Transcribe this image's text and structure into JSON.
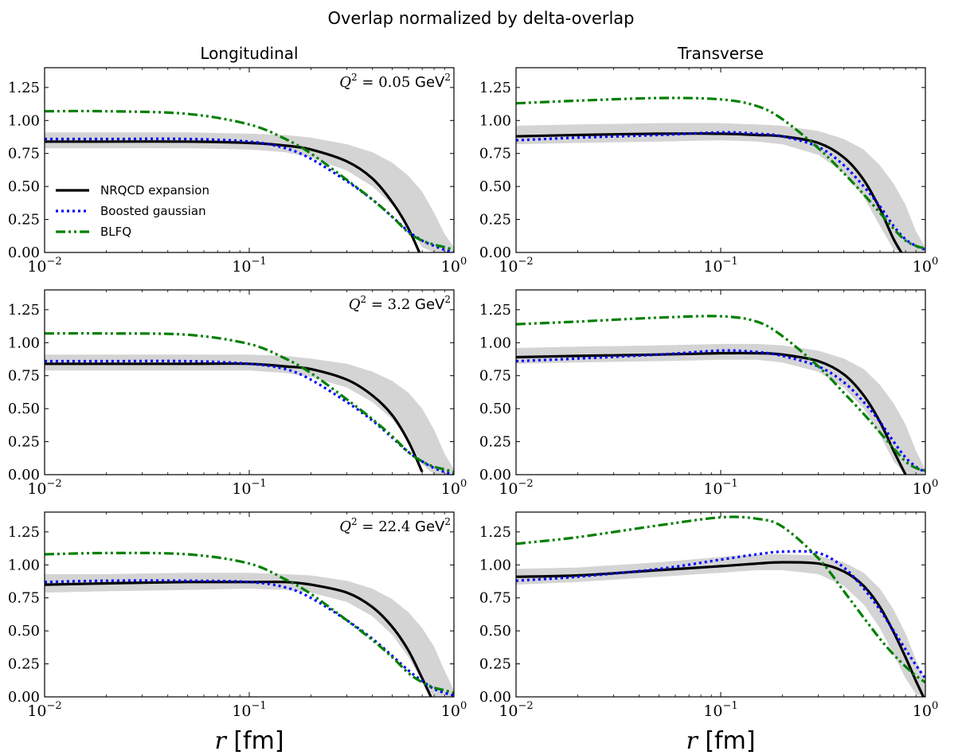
{
  "figure": {
    "suptitle": "Overlap normalized by delta-overlap",
    "column_titles": [
      "Longitudinal",
      "Transverse"
    ],
    "xlabel_symbol": "r",
    "xlabel_unit": "[fm]"
  },
  "chart_data": [
    {
      "type": "line",
      "title": "Longitudinal",
      "annotation": {
        "symbol": "Q",
        "exp": "2",
        "value": "= 0.05",
        "unit": "GeV",
        "unit_exp": "2"
      },
      "xlabel": "",
      "ylabel": "",
      "x_scale": "log",
      "xlim": [
        0.01,
        1
      ],
      "ylim": [
        0,
        1.4
      ],
      "x_ticks": [
        {
          "base": "10",
          "exp": "−2"
        },
        {
          "base": "10",
          "exp": "−1"
        },
        {
          "base": "10",
          "exp": "0"
        }
      ],
      "y_ticks": [
        "0.00",
        "0.25",
        "0.50",
        "0.75",
        "1.00",
        "1.25"
      ],
      "legend": {
        "placement": "center-left",
        "entries": [
          "NRQCD expansion",
          "Boosted gaussian",
          "BLFQ"
        ]
      },
      "x": [
        0.01,
        0.02,
        0.05,
        0.1,
        0.15,
        0.2,
        0.3,
        0.4,
        0.5,
        0.6,
        0.7,
        0.8,
        0.9,
        1.0
      ],
      "band": {
        "lower": [
          0.79,
          0.79,
          0.79,
          0.78,
          0.76,
          0.72,
          0.62,
          0.5,
          0.36,
          0.2,
          0.04,
          0.0,
          0.0,
          0.0
        ],
        "upper": [
          0.91,
          0.91,
          0.91,
          0.9,
          0.89,
          0.87,
          0.82,
          0.76,
          0.68,
          0.58,
          0.46,
          0.3,
          0.14,
          0.04
        ]
      },
      "series": [
        {
          "name": "NRQCD expansion",
          "values": [
            0.84,
            0.84,
            0.84,
            0.83,
            0.81,
            0.78,
            0.69,
            0.56,
            0.38,
            0.18,
            -0.05,
            null,
            null,
            null
          ]
        },
        {
          "name": "Boosted gaussian",
          "values": [
            0.86,
            0.86,
            0.86,
            0.84,
            0.79,
            0.71,
            0.54,
            0.4,
            0.27,
            0.16,
            0.09,
            0.05,
            0.02,
            0.0
          ]
        },
        {
          "name": "BLFQ",
          "values": [
            1.07,
            1.07,
            1.05,
            0.97,
            0.86,
            0.75,
            0.55,
            0.4,
            0.27,
            0.15,
            0.09,
            0.06,
            0.04,
            0.02
          ]
        }
      ]
    },
    {
      "type": "line",
      "title": "Transverse",
      "annotation": null,
      "xlabel": "",
      "ylabel": "",
      "x_scale": "log",
      "xlim": [
        0.01,
        1
      ],
      "ylim": [
        0,
        1.4
      ],
      "x_ticks": [
        {
          "base": "10",
          "exp": "−2"
        },
        {
          "base": "10",
          "exp": "−1"
        },
        {
          "base": "10",
          "exp": "0"
        }
      ],
      "y_ticks": [
        "0.00",
        "0.25",
        "0.50",
        "0.75",
        "1.00",
        "1.25"
      ],
      "x": [
        0.01,
        0.02,
        0.05,
        0.1,
        0.15,
        0.2,
        0.3,
        0.4,
        0.5,
        0.6,
        0.7,
        0.8,
        0.9,
        1.0
      ],
      "band": {
        "lower": [
          0.82,
          0.83,
          0.84,
          0.85,
          0.84,
          0.82,
          0.74,
          0.6,
          0.42,
          0.2,
          0.02,
          0.0,
          0.0,
          0.0
        ],
        "upper": [
          0.96,
          0.97,
          0.98,
          0.98,
          0.97,
          0.96,
          0.92,
          0.86,
          0.78,
          0.66,
          0.52,
          0.36,
          0.16,
          0.04
        ]
      },
      "series": [
        {
          "name": "NRQCD expansion",
          "values": [
            0.88,
            0.89,
            0.9,
            0.9,
            0.89,
            0.88,
            0.83,
            0.72,
            0.55,
            0.33,
            0.1,
            -0.05,
            null,
            null
          ]
        },
        {
          "name": "Boosted gaussian",
          "values": [
            0.85,
            0.87,
            0.89,
            0.91,
            0.9,
            0.88,
            0.8,
            0.66,
            0.5,
            0.35,
            0.2,
            0.1,
            0.05,
            0.02
          ]
        },
        {
          "name": "BLFQ",
          "values": [
            1.13,
            1.15,
            1.17,
            1.16,
            1.11,
            1.01,
            0.79,
            0.6,
            0.44,
            0.3,
            0.18,
            0.09,
            0.05,
            0.03
          ]
        }
      ]
    },
    {
      "type": "line",
      "title": "",
      "annotation": {
        "symbol": "Q",
        "exp": "2",
        "value": "= 3.2",
        "unit": "GeV",
        "unit_exp": "2"
      },
      "xlabel": "",
      "ylabel": "",
      "x_scale": "log",
      "xlim": [
        0.01,
        1
      ],
      "ylim": [
        0,
        1.4
      ],
      "x_ticks": [
        {
          "base": "10",
          "exp": "−2"
        },
        {
          "base": "10",
          "exp": "−1"
        },
        {
          "base": "10",
          "exp": "0"
        }
      ],
      "y_ticks": [
        "0.00",
        "0.25",
        "0.50",
        "0.75",
        "1.00",
        "1.25"
      ],
      "x": [
        0.01,
        0.02,
        0.05,
        0.1,
        0.15,
        0.2,
        0.3,
        0.4,
        0.5,
        0.6,
        0.7,
        0.8,
        0.9,
        1.0
      ],
      "band": {
        "lower": [
          0.79,
          0.79,
          0.79,
          0.79,
          0.77,
          0.74,
          0.66,
          0.55,
          0.42,
          0.26,
          0.08,
          0.0,
          0.0,
          0.0
        ],
        "upper": [
          0.91,
          0.91,
          0.91,
          0.91,
          0.9,
          0.88,
          0.84,
          0.78,
          0.71,
          0.62,
          0.5,
          0.34,
          0.16,
          0.04
        ]
      },
      "series": [
        {
          "name": "NRQCD expansion",
          "values": [
            0.84,
            0.84,
            0.84,
            0.84,
            0.82,
            0.8,
            0.72,
            0.6,
            0.45,
            0.25,
            0.02,
            null,
            null,
            null
          ]
        },
        {
          "name": "Boosted gaussian",
          "values": [
            0.86,
            0.86,
            0.86,
            0.84,
            0.8,
            0.72,
            0.55,
            0.41,
            0.28,
            0.17,
            0.1,
            0.05,
            0.02,
            0.0
          ]
        },
        {
          "name": "BLFQ",
          "values": [
            1.07,
            1.07,
            1.06,
            0.99,
            0.88,
            0.77,
            0.57,
            0.42,
            0.29,
            0.17,
            0.1,
            0.06,
            0.04,
            0.02
          ]
        }
      ]
    },
    {
      "type": "line",
      "title": "",
      "annotation": null,
      "xlabel": "",
      "ylabel": "",
      "x_scale": "log",
      "xlim": [
        0.01,
        1
      ],
      "ylim": [
        0,
        1.4
      ],
      "x_ticks": [
        {
          "base": "10",
          "exp": "−2"
        },
        {
          "base": "10",
          "exp": "−1"
        },
        {
          "base": "10",
          "exp": "0"
        }
      ],
      "y_ticks": [
        "0.00",
        "0.25",
        "0.50",
        "0.75",
        "1.00",
        "1.25"
      ],
      "x": [
        0.01,
        0.02,
        0.05,
        0.1,
        0.15,
        0.2,
        0.3,
        0.4,
        0.5,
        0.6,
        0.7,
        0.8,
        0.9,
        1.0
      ],
      "band": {
        "lower": [
          0.84,
          0.85,
          0.86,
          0.87,
          0.87,
          0.85,
          0.78,
          0.66,
          0.5,
          0.3,
          0.1,
          0.0,
          0.0,
          0.0
        ],
        "upper": [
          0.96,
          0.97,
          0.98,
          0.99,
          0.99,
          0.98,
          0.94,
          0.88,
          0.8,
          0.68,
          0.54,
          0.38,
          0.18,
          0.04
        ]
      },
      "series": [
        {
          "name": "NRQCD expansion",
          "values": [
            0.89,
            0.9,
            0.91,
            0.92,
            0.92,
            0.91,
            0.86,
            0.76,
            0.6,
            0.4,
            0.18,
            0.0,
            null,
            null
          ]
        },
        {
          "name": "Boosted gaussian",
          "values": [
            0.86,
            0.88,
            0.91,
            0.94,
            0.93,
            0.9,
            0.82,
            0.7,
            0.55,
            0.4,
            0.25,
            0.13,
            0.06,
            0.02
          ]
        },
        {
          "name": "BLFQ",
          "values": [
            1.14,
            1.16,
            1.19,
            1.2,
            1.16,
            1.05,
            0.82,
            0.62,
            0.46,
            0.32,
            0.2,
            0.1,
            0.05,
            0.03
          ]
        }
      ]
    },
    {
      "type": "line",
      "title": "",
      "annotation": {
        "symbol": "Q",
        "exp": "2",
        "value": "= 22.4",
        "unit": "GeV",
        "unit_exp": "2"
      },
      "xlabel": "",
      "ylabel": "",
      "x_scale": "log",
      "xlim": [
        0.01,
        1
      ],
      "ylim": [
        0,
        1.4
      ],
      "x_ticks": [
        {
          "base": "10",
          "exp": "−2"
        },
        {
          "base": "10",
          "exp": "−1"
        },
        {
          "base": "10",
          "exp": "0"
        }
      ],
      "y_ticks": [
        "0.00",
        "0.25",
        "0.50",
        "0.75",
        "1.00",
        "1.25"
      ],
      "x": [
        0.01,
        0.02,
        0.05,
        0.1,
        0.15,
        0.2,
        0.3,
        0.4,
        0.5,
        0.6,
        0.7,
        0.8,
        0.9,
        1.0
      ],
      "band": {
        "lower": [
          0.79,
          0.8,
          0.81,
          0.82,
          0.81,
          0.79,
          0.72,
          0.61,
          0.47,
          0.3,
          0.12,
          0.0,
          0.0,
          0.0
        ],
        "upper": [
          0.93,
          0.93,
          0.94,
          0.94,
          0.93,
          0.92,
          0.88,
          0.82,
          0.74,
          0.64,
          0.52,
          0.38,
          0.2,
          0.05
        ]
      },
      "series": [
        {
          "name": "NRQCD expansion",
          "values": [
            0.85,
            0.86,
            0.87,
            0.87,
            0.87,
            0.85,
            0.79,
            0.68,
            0.53,
            0.35,
            0.14,
            -0.05,
            null,
            null
          ]
        },
        {
          "name": "Boosted gaussian",
          "values": [
            0.87,
            0.88,
            0.88,
            0.87,
            0.83,
            0.75,
            0.58,
            0.44,
            0.31,
            0.2,
            0.12,
            0.06,
            0.03,
            0.01
          ]
        },
        {
          "name": "BLFQ",
          "values": [
            1.08,
            1.09,
            1.08,
            1.01,
            0.89,
            0.78,
            0.58,
            0.43,
            0.3,
            0.18,
            0.11,
            0.07,
            0.05,
            0.03
          ]
        }
      ]
    },
    {
      "type": "line",
      "title": "",
      "annotation": null,
      "xlabel": "",
      "ylabel": "",
      "x_scale": "log",
      "xlim": [
        0.01,
        1
      ],
      "ylim": [
        0,
        1.4
      ],
      "x_ticks": [
        {
          "base": "10",
          "exp": "−2"
        },
        {
          "base": "10",
          "exp": "−1"
        },
        {
          "base": "10",
          "exp": "0"
        }
      ],
      "y_ticks": [
        "0.00",
        "0.25",
        "0.50",
        "0.75",
        "1.00",
        "1.25"
      ],
      "x": [
        0.01,
        0.02,
        0.05,
        0.1,
        0.15,
        0.2,
        0.3,
        0.4,
        0.5,
        0.6,
        0.7,
        0.8,
        0.9,
        1.0
      ],
      "band": {
        "lower": [
          0.85,
          0.87,
          0.91,
          0.94,
          0.96,
          0.96,
          0.93,
          0.84,
          0.7,
          0.52,
          0.32,
          0.14,
          0.02,
          0.0
        ],
        "upper": [
          0.97,
          0.98,
          1.02,
          1.06,
          1.08,
          1.08,
          1.07,
          1.02,
          0.94,
          0.82,
          0.66,
          0.48,
          0.28,
          0.12
        ]
      },
      "series": [
        {
          "name": "NRQCD expansion",
          "values": [
            0.91,
            0.92,
            0.96,
            0.99,
            1.01,
            1.02,
            1.01,
            0.95,
            0.84,
            0.68,
            0.49,
            0.3,
            0.12,
            -0.03
          ]
        },
        {
          "name": "Boosted gaussian",
          "values": [
            0.88,
            0.91,
            0.97,
            1.04,
            1.08,
            1.1,
            1.09,
            0.98,
            0.82,
            0.66,
            0.5,
            0.36,
            0.24,
            0.14
          ]
        },
        {
          "name": "BLFQ",
          "values": [
            1.16,
            1.21,
            1.3,
            1.36,
            1.35,
            1.29,
            1.05,
            0.8,
            0.6,
            0.44,
            0.32,
            0.23,
            0.16,
            0.11
          ]
        }
      ]
    }
  ]
}
